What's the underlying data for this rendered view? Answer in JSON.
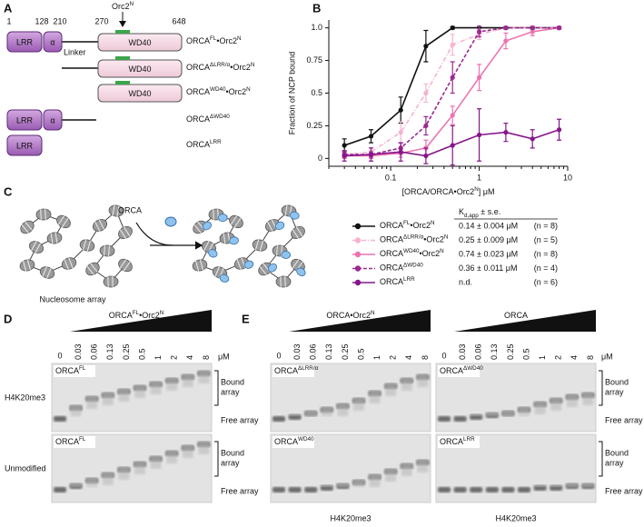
{
  "panel_a": {
    "label": "A",
    "positions": [
      "1",
      "128",
      "210",
      "270",
      "648"
    ],
    "orc2n": [
      "Orc2",
      "N"
    ],
    "linker": "Linker",
    "domains": {
      "lrr": "LRR",
      "alpha": "α",
      "wd40": "WD40"
    },
    "constructs": [
      [
        "ORCA",
        "FL",
        "•Orc2",
        "N"
      ],
      [
        "ORCA",
        "ΔLRR/α",
        "•Orc2",
        "N"
      ],
      [
        "ORCA",
        "WD40",
        "•Orc2",
        "N"
      ],
      [
        "ORCA",
        "ΔWD40"
      ],
      [
        "ORCA",
        "LRR"
      ]
    ]
  },
  "chart_data": {
    "type": "line",
    "label": "B",
    "y_label": "Fraction of NCP bound",
    "x_label": [
      "[ORCA/ORCA•Orc2",
      "N",
      "] μM"
    ],
    "log_x": true,
    "xlim": [
      0.02,
      10
    ],
    "xticks": [
      0.1,
      1,
      10
    ],
    "xminor": [
      0.02,
      0.03,
      0.04,
      0.05,
      0.06,
      0.07,
      0.08,
      0.09,
      0.2,
      0.3,
      0.4,
      0.5,
      0.6,
      0.7,
      0.8,
      0.9,
      2,
      3,
      4,
      5,
      6,
      7,
      8,
      9
    ],
    "ylim": [
      -0.06,
      1.06
    ],
    "yticks": [
      0,
      0.25,
      0.5,
      0.75,
      {
        "value": 1,
        "label": "1.0"
      }
    ],
    "x": [
      0.03,
      0.06,
      0.13,
      0.25,
      0.5,
      1,
      2,
      4,
      8
    ],
    "kd_header": {
      "main": "K",
      "sub": "d,app",
      "rest": " ± s.e."
    },
    "series": [
      {
        "name": [
          "ORCA",
          "FL",
          "•Orc2",
          "N"
        ],
        "color": "#111111",
        "dash": "solid",
        "values": [
          0.1,
          0.17,
          0.37,
          0.86,
          1,
          1,
          1,
          1,
          1
        ],
        "errors": [
          0.05,
          0.05,
          0.1,
          0.12,
          0.01,
          0.01,
          0.01,
          0.01,
          0.01
        ],
        "kd": "0.14 ± 0.004 μM",
        "n": "(n = 8)"
      },
      {
        "name": [
          "ORCA",
          "ΔLRR/α",
          "•Orc2",
          "N"
        ],
        "color": "#f5b3d0",
        "dash": "dashdot",
        "values": [
          0.03,
          0.05,
          0.2,
          0.5,
          0.87,
          0.95,
          1,
          1,
          1
        ],
        "errors": [
          0.03,
          0.03,
          0.08,
          0.07,
          0.08,
          0.04,
          0.01,
          0.01,
          0.01
        ],
        "kd": "0.25 ± 0.009 μM",
        "n": "(n = 5)"
      },
      {
        "name": [
          "ORCA",
          "WD40",
          "•Orc2",
          "N"
        ],
        "color": "#ec74b1",
        "dash": "solid",
        "values": [
          0.02,
          0.02,
          0.04,
          0.08,
          0.33,
          0.62,
          0.9,
          0.97,
          1
        ],
        "errors": [
          0.02,
          0.02,
          0.03,
          0.06,
          0.07,
          0.1,
          0.06,
          0.03,
          0.01
        ],
        "kd": "0.74 ± 0.023 μM",
        "n": "(n = 8)"
      },
      {
        "name": [
          "ORCA",
          "ΔWD40"
        ],
        "color": "#9b2a8e",
        "dash": "dash",
        "values": [
          0.03,
          0.03,
          0.08,
          0.25,
          0.62,
          0.97,
          1,
          1,
          1
        ],
        "errors": [
          0.02,
          0.02,
          0.04,
          0.07,
          0.12,
          0.04,
          0.01,
          0.01,
          0.01
        ],
        "kd": "0.36 ± 0.011 μM",
        "n": "(n = 4)"
      },
      {
        "name": [
          "ORCA",
          "LRR"
        ],
        "color": "#86168a",
        "dash": "solid",
        "values": [
          0.02,
          0.03,
          0.05,
          0.02,
          0.1,
          0.18,
          0.2,
          0.15,
          0.22
        ],
        "errors": [
          0.04,
          0.05,
          0.07,
          0.06,
          0.15,
          0.2,
          0.07,
          0.07,
          0.08
        ],
        "kd": "n.d.",
        "n": "(n = 6)"
      }
    ]
  },
  "panel_c": {
    "label": "C",
    "protein": "ORCA",
    "array": "Nucleosome array"
  },
  "panel_d": {
    "label": "D",
    "titles": [
      [
        "ORCA",
        "FL",
        "•Orc2",
        "N"
      ]
    ],
    "concentrations": [
      "0",
      "0.03",
      "0.06",
      "0.13",
      "0.25",
      "0.5",
      "1",
      "2",
      "4",
      "8"
    ],
    "unit": "μM",
    "rows": [
      "H4K20me3",
      "Unmodified"
    ],
    "gel_labels": [
      [
        [
          "ORCA",
          "FL"
        ]
      ],
      [
        [
          "ORCA",
          "FL"
        ]
      ]
    ],
    "bound": [
      "Bound",
      "array"
    ],
    "free": "Free array"
  },
  "panel_e": {
    "label": "E",
    "titles": [
      [
        "ORCA•Orc2",
        "N"
      ],
      [
        "ORCA"
      ]
    ],
    "concentrations": [
      "0",
      "0.03",
      "0.06",
      "0.13",
      "0.25",
      "0.5",
      "1",
      "2",
      "4",
      "8"
    ],
    "unit": "μM",
    "gel_labels": [
      [
        [
          "ORCA",
          "ΔLRR/α"
        ],
        [
          "ORCA",
          "ΔWD40"
        ]
      ],
      [
        [
          "ORCA",
          "WD40"
        ],
        [
          "ORCA",
          "LRR"
        ]
      ]
    ],
    "bound": [
      "Bound",
      "array"
    ],
    "free": "Free array",
    "bottom": "H4K20me3"
  }
}
